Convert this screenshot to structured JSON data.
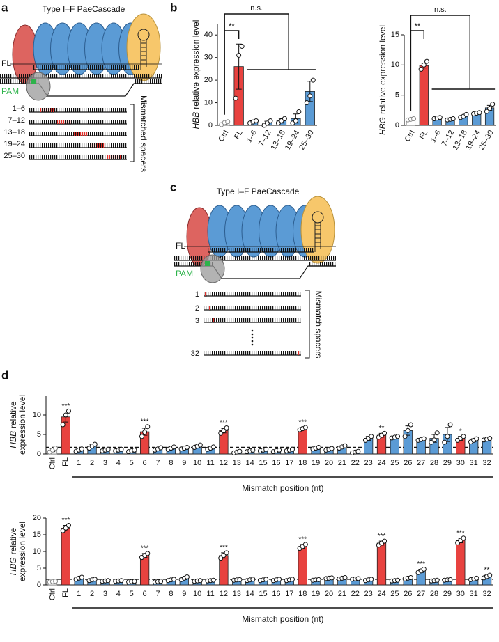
{
  "panel_labels": [
    "a",
    "b",
    "c",
    "d"
  ],
  "diagram_a": {
    "title": "Type I–F PaeCascade",
    "fl": "FL",
    "pam": "PAM",
    "spacers": [
      "1–6",
      "7–12",
      "13–18",
      "19–24",
      "25–30"
    ],
    "bracket": "Mismatched spacers"
  },
  "diagram_c": {
    "title": "Type I–F PaeCascade",
    "fl": "FL",
    "pam": "PAM",
    "spacers": [
      "1",
      "2",
      "3",
      "32"
    ],
    "bracket": "Mismatch spacers"
  },
  "chart_data": [
    {
      "type": "bar",
      "ylabel_gene": "HBB",
      "ylabel": [
        "relative expression level"
      ],
      "categories": [
        "Ctrl",
        "FL",
        "1–6",
        "7–12",
        "13–18",
        "19–24",
        "25–30"
      ],
      "values": [
        1,
        26,
        1.5,
        1,
        2,
        3,
        15
      ],
      "errors": [
        0.5,
        10,
        0.5,
        0.8,
        1,
        2,
        4.5
      ],
      "points": [
        [
          0.3,
          1.2,
          1.6
        ],
        [
          12,
          31,
          35
        ],
        [
          1,
          1.5,
          2
        ],
        [
          0,
          1,
          2
        ],
        [
          1,
          2,
          3
        ],
        [
          1,
          2,
          6
        ],
        [
          10,
          13,
          20
        ]
      ],
      "colors": [
        "#ffffff",
        "#e8423f",
        "#5b9bd5",
        "#5b9bd5",
        "#5b9bd5",
        "#5b9bd5",
        "#5b9bd5"
      ],
      "ylim": [
        0,
        45
      ],
      "yticks": [
        0,
        10,
        20,
        30,
        40
      ],
      "brackets": [
        "**",
        "n.s."
      ]
    },
    {
      "type": "bar",
      "ylabel_gene": "HBG",
      "ylabel": [
        "relative expression level"
      ],
      "categories": [
        "Ctrl",
        "FL",
        "1–6",
        "7–12",
        "13–18",
        "19–24",
        "25–30"
      ],
      "values": [
        1,
        9.9,
        1.2,
        1,
        1.5,
        2,
        2.9
      ],
      "errors": [
        0.05,
        0.4,
        0.05,
        0.05,
        0.15,
        0.05,
        0.4
      ],
      "points": [
        [
          0.9,
          1,
          1.1
        ],
        [
          9.3,
          10,
          10.6
        ],
        [
          1.1,
          1.2,
          1.3
        ],
        [
          0.9,
          1,
          1.1
        ],
        [
          1.3,
          1.5,
          1.8
        ],
        [
          1.9,
          2,
          2.1
        ],
        [
          2.3,
          2.8,
          3.5
        ]
      ],
      "colors": [
        "#ffffff",
        "#e8423f",
        "#5b9bd5",
        "#5b9bd5",
        "#5b9bd5",
        "#5b9bd5",
        "#5b9bd5"
      ],
      "ylim": [
        0,
        15
      ],
      "yticks": [
        0,
        5,
        10,
        15
      ],
      "brackets": [
        "**",
        "n.s."
      ]
    },
    {
      "type": "bar",
      "ylabel_gene": "HBB",
      "ylabel": [
        "relative",
        "expression level"
      ],
      "xlabel": "Mismatch position (nt)",
      "categories": [
        "Ctrl",
        "FL",
        "1",
        "2",
        "3",
        "4",
        "5",
        "6",
        "7",
        "8",
        "9",
        "10",
        "11",
        "12",
        "13",
        "14",
        "15",
        "16",
        "17",
        "18",
        "19",
        "20",
        "21",
        "22",
        "23",
        "24",
        "25",
        "26",
        "27",
        "28",
        "29",
        "30",
        "31",
        "32"
      ],
      "values": [
        1,
        9.5,
        1,
        2,
        1,
        1,
        0.8,
        5.7,
        1.3,
        1.5,
        1.5,
        2,
        1.5,
        6,
        0.5,
        0.8,
        1,
        0.8,
        1,
        6.5,
        1.5,
        1.2,
        1.8,
        0.5,
        4,
        4.8,
        4.3,
        6,
        3.7,
        4,
        5,
        4,
        3.5,
        3.8
      ],
      "errors": [
        0.4,
        1.3,
        0.3,
        0.5,
        0.2,
        0.2,
        0.2,
        0.9,
        0.3,
        0.3,
        0.2,
        0.3,
        0.3,
        0.6,
        0.2,
        0.2,
        0.2,
        0.2,
        0.2,
        0.3,
        0.2,
        0.2,
        0.3,
        0.2,
        0.5,
        0.5,
        0.2,
        1.2,
        0.2,
        1,
        1.8,
        0.5,
        0.4,
        0.2
      ],
      "points": [
        [
          0.5,
          1,
          1.5
        ],
        [
          7.5,
          10,
          11
        ],
        [
          0.7,
          1,
          1.3
        ],
        [
          1.5,
          2,
          2.5
        ],
        [
          0.8,
          1,
          1.2
        ],
        [
          0.8,
          1,
          1.2
        ],
        [
          0.6,
          0.8,
          1
        ],
        [
          4.5,
          5.6,
          7
        ],
        [
          1,
          1.3,
          1.6
        ],
        [
          1.2,
          1.5,
          1.8
        ],
        [
          1.3,
          1.5,
          1.7
        ],
        [
          1.7,
          2,
          2.3
        ],
        [
          1.2,
          1.5,
          1.8
        ],
        [
          5.3,
          6,
          6.7
        ],
        [
          0.3,
          0.5,
          0.7
        ],
        [
          0.6,
          0.8,
          1
        ],
        [
          0.8,
          1,
          1.2
        ],
        [
          0.6,
          0.8,
          1
        ],
        [
          0.8,
          1,
          1.2
        ],
        [
          6.2,
          6.5,
          6.8
        ],
        [
          1.3,
          1.5,
          1.7
        ],
        [
          1,
          1.2,
          1.4
        ],
        [
          1.5,
          1.8,
          2.1
        ],
        [
          0.3,
          0.5,
          0.7
        ],
        [
          3.5,
          4,
          4.5
        ],
        [
          4.3,
          4.8,
          5.3
        ],
        [
          4.1,
          4.3,
          4.5
        ],
        [
          4.5,
          6,
          7.5
        ],
        [
          3.5,
          3.7,
          3.9
        ],
        [
          3,
          3.6,
          5.4
        ],
        [
          3,
          4.5,
          7.5
        ],
        [
          3.5,
          4,
          4.5
        ],
        [
          3.1,
          3.5,
          3.9
        ],
        [
          3.6,
          3.8,
          4
        ]
      ],
      "colors": [
        "#ffffff",
        "#e8423f",
        "#5b9bd5",
        "#5b9bd5",
        "#5b9bd5",
        "#5b9bd5",
        "#5b9bd5",
        "#e8423f",
        "#5b9bd5",
        "#5b9bd5",
        "#5b9bd5",
        "#5b9bd5",
        "#5b9bd5",
        "#e8423f",
        "#5b9bd5",
        "#5b9bd5",
        "#5b9bd5",
        "#5b9bd5",
        "#5b9bd5",
        "#e8423f",
        "#5b9bd5",
        "#5b9bd5",
        "#5b9bd5",
        "#5b9bd5",
        "#5b9bd5",
        "#e8423f",
        "#5b9bd5",
        "#5b9bd5",
        "#5b9bd5",
        "#5b9bd5",
        "#5b9bd5",
        "#e8423f",
        "#5b9bd5",
        "#5b9bd5"
      ],
      "significance": [
        null,
        "***",
        null,
        null,
        null,
        null,
        null,
        "***",
        null,
        null,
        null,
        null,
        null,
        "***",
        null,
        null,
        null,
        null,
        null,
        "***",
        null,
        null,
        null,
        null,
        null,
        "**",
        null,
        null,
        null,
        null,
        null,
        "*",
        null,
        null
      ],
      "threshold": 1.7,
      "ylim": [
        0,
        15
      ],
      "yticks": [
        0,
        5,
        10
      ]
    },
    {
      "type": "bar",
      "ylabel_gene": "HBG",
      "ylabel": [
        "relative",
        "expression level"
      ],
      "xlabel": "Mismatch position (nt)",
      "categories": [
        "Ctrl",
        "FL",
        "1",
        "2",
        "3",
        "4",
        "5",
        "6",
        "7",
        "8",
        "9",
        "10",
        "11",
        "12",
        "13",
        "14",
        "15",
        "16",
        "17",
        "18",
        "19",
        "20",
        "21",
        "22",
        "23",
        "24",
        "25",
        "26",
        "27",
        "28",
        "29",
        "30",
        "31",
        "32"
      ],
      "values": [
        1,
        17,
        2,
        1.5,
        1.2,
        1.2,
        1,
        8.8,
        1,
        1.5,
        2,
        1.2,
        1.3,
        8.8,
        1.5,
        1.5,
        1.5,
        1.5,
        1.5,
        11.5,
        1.5,
        2,
        2,
        1.8,
        1.5,
        12.5,
        1.3,
        2,
        4.2,
        1.3,
        1.5,
        13.3,
        1.8,
        2.5
      ],
      "errors": [
        0.1,
        0.8,
        0.3,
        0.2,
        0.1,
        0.1,
        0.1,
        0.6,
        0.1,
        0.2,
        0.4,
        0.1,
        0.1,
        0.8,
        0.1,
        0.2,
        0.2,
        0.2,
        0.2,
        0.6,
        0.1,
        0.1,
        0.2,
        0.1,
        0.2,
        0.6,
        0.1,
        0.2,
        0.5,
        0.1,
        0.1,
        0.7,
        0.2,
        0.4
      ],
      "points": [
        [
          0.9,
          1,
          1.1
        ],
        [
          16.2,
          17,
          17.8
        ],
        [
          1.7,
          2,
          2.3
        ],
        [
          1.3,
          1.5,
          1.7
        ],
        [
          1.1,
          1.2,
          1.3
        ],
        [
          1.1,
          1.2,
          1.3
        ],
        [
          0.9,
          1,
          1.1
        ],
        [
          8.2,
          8.8,
          9.4
        ],
        [
          0.9,
          1,
          1.1
        ],
        [
          1.3,
          1.5,
          1.7
        ],
        [
          1.6,
          2,
          2.4
        ],
        [
          1.1,
          1.2,
          1.3
        ],
        [
          1.2,
          1.3,
          1.4
        ],
        [
          8,
          8.8,
          9.6
        ],
        [
          1.4,
          1.5,
          1.6
        ],
        [
          1.3,
          1.5,
          1.7
        ],
        [
          1.3,
          1.5,
          1.7
        ],
        [
          1.3,
          1.5,
          1.7
        ],
        [
          1.3,
          1.5,
          1.7
        ],
        [
          10.9,
          11.5,
          12.1
        ],
        [
          1.4,
          1.5,
          1.6
        ],
        [
          1.9,
          2,
          2.1
        ],
        [
          1.8,
          2,
          2.2
        ],
        [
          1.7,
          1.8,
          1.9
        ],
        [
          1.3,
          1.5,
          1.7
        ],
        [
          11.9,
          12.5,
          13.1
        ],
        [
          1.2,
          1.3,
          1.4
        ],
        [
          1.8,
          2,
          2.2
        ],
        [
          3.7,
          4.2,
          4.7
        ],
        [
          1.2,
          1.3,
          1.4
        ],
        [
          1.4,
          1.5,
          1.6
        ],
        [
          12.6,
          13.3,
          14
        ],
        [
          1.6,
          1.8,
          2
        ],
        [
          2.1,
          2.5,
          2.9
        ]
      ],
      "colors": [
        "#ffffff",
        "#e8423f",
        "#5b9bd5",
        "#5b9bd5",
        "#5b9bd5",
        "#5b9bd5",
        "#5b9bd5",
        "#e8423f",
        "#5b9bd5",
        "#5b9bd5",
        "#5b9bd5",
        "#5b9bd5",
        "#5b9bd5",
        "#e8423f",
        "#5b9bd5",
        "#5b9bd5",
        "#5b9bd5",
        "#5b9bd5",
        "#5b9bd5",
        "#e8423f",
        "#5b9bd5",
        "#5b9bd5",
        "#5b9bd5",
        "#5b9bd5",
        "#5b9bd5",
        "#e8423f",
        "#5b9bd5",
        "#5b9bd5",
        "#5b9bd5",
        "#5b9bd5",
        "#5b9bd5",
        "#e8423f",
        "#5b9bd5",
        "#5b9bd5"
      ],
      "significance": [
        null,
        "***",
        null,
        null,
        null,
        null,
        null,
        "***",
        null,
        null,
        null,
        null,
        null,
        "***",
        null,
        null,
        null,
        null,
        null,
        "***",
        null,
        null,
        null,
        null,
        null,
        "***",
        null,
        null,
        "***",
        null,
        null,
        "***",
        null,
        "**"
      ],
      "threshold": 1.7,
      "ylim": [
        0,
        20
      ],
      "yticks": [
        0,
        5,
        10,
        15,
        20
      ]
    }
  ]
}
